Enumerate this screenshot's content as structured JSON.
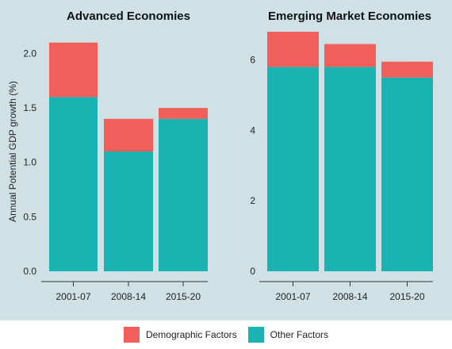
{
  "colors": {
    "demographic": "#f15f5b",
    "other": "#1ab3b2",
    "panel_bg": "#d0e1e6",
    "axis": "#333333"
  },
  "legend": {
    "demographic_label": "Demographic Factors",
    "other_label": "Other Factors"
  },
  "chart_data": [
    {
      "type": "bar",
      "stacked": true,
      "title": "Advanced Economies",
      "ylabel": "Annual Potential GDP growth (%)",
      "categories": [
        "2001-07",
        "2008-14",
        "2015-20"
      ],
      "series": [
        {
          "name": "Other Factors",
          "values": [
            1.6,
            1.1,
            1.4
          ]
        },
        {
          "name": "Demographic Factors",
          "values": [
            0.5,
            0.3,
            0.1
          ]
        }
      ],
      "ylim": [
        0,
        2.2
      ],
      "yticks": [
        0,
        0.5,
        1,
        1.5,
        2
      ],
      "ytick_labels": [
        "0.0",
        "0.5",
        "1.0",
        "1.5",
        "2.0"
      ],
      "legend_position": "bottom"
    },
    {
      "type": "bar",
      "stacked": true,
      "title": "Emerging Market Economies",
      "ylabel": "",
      "categories": [
        "2001-07",
        "2008-14",
        "2015-20"
      ],
      "series": [
        {
          "name": "Other Factors",
          "values": [
            5.8,
            5.8,
            5.5
          ]
        },
        {
          "name": "Demographic Factors",
          "values": [
            1.0,
            0.65,
            0.45
          ]
        }
      ],
      "ylim": [
        0,
        6.8
      ],
      "yticks": [
        0,
        2,
        4,
        6
      ],
      "ytick_labels": [
        "0",
        "2",
        "4",
        "6"
      ],
      "legend_position": "bottom"
    }
  ]
}
